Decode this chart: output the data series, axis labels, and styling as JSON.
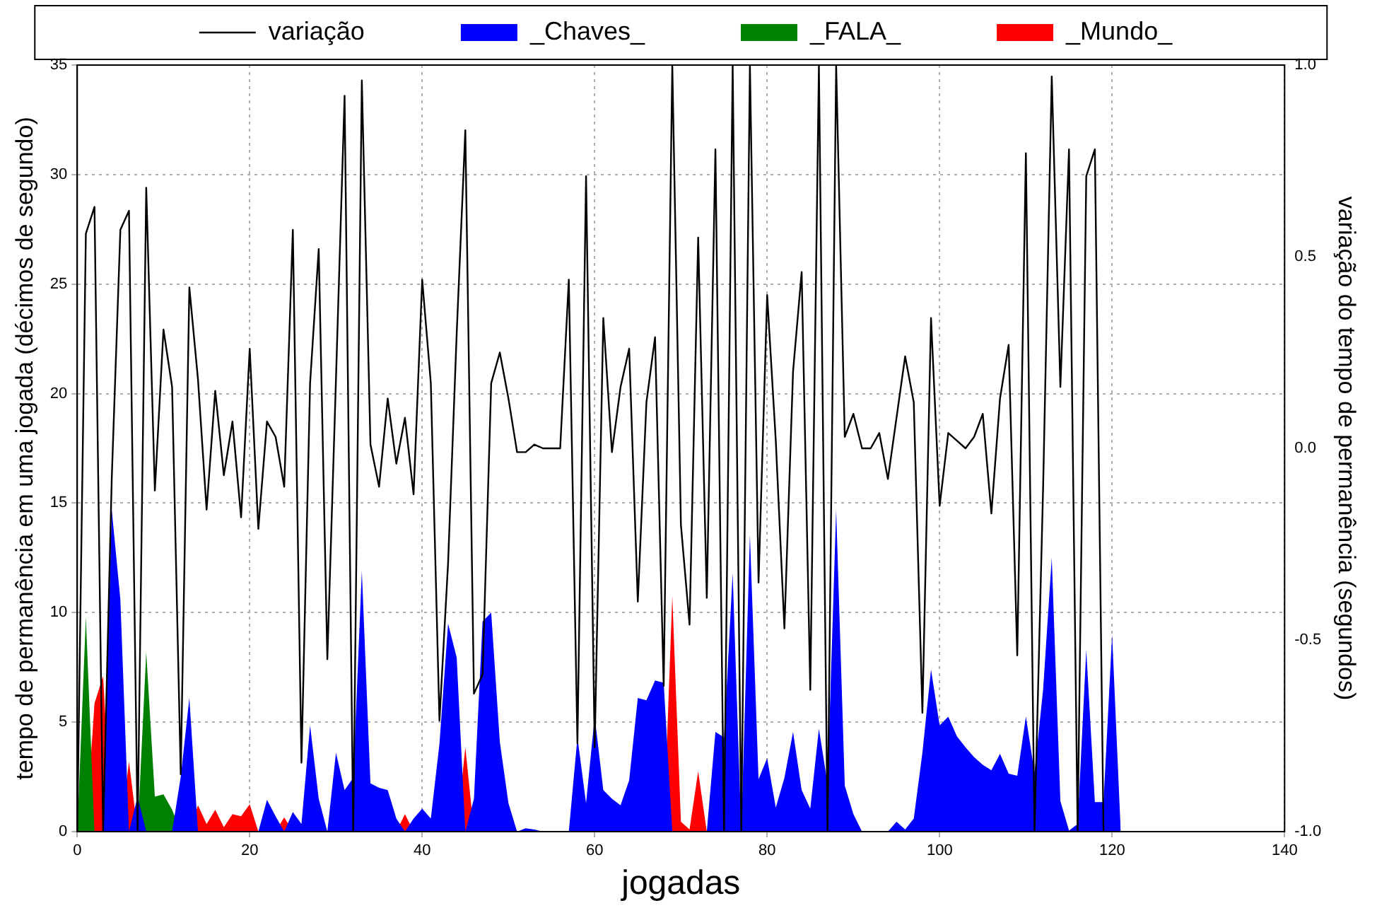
{
  "chart_data": {
    "type": "area",
    "xlabel": "jogadas",
    "ylabel": "tempo de permanência em uma jogada (décimos de segundo)",
    "y2label": "variação do tempo de permanência (segundos)",
    "x": [
      0,
      1,
      2,
      3,
      4,
      5,
      6,
      7,
      8,
      9,
      10,
      11,
      12,
      13,
      14,
      15,
      16,
      17,
      18,
      19,
      20,
      21,
      22,
      23,
      24,
      25,
      26,
      27,
      28,
      29,
      30,
      31,
      32,
      33,
      34,
      35,
      36,
      37,
      38,
      39,
      40,
      41,
      42,
      43,
      44,
      45,
      46,
      47,
      48,
      49,
      50,
      51,
      52,
      53,
      54,
      55,
      56,
      57,
      58,
      59,
      60,
      61,
      62,
      63,
      64,
      65,
      66,
      67,
      68,
      69,
      70,
      71,
      72,
      73,
      74,
      75,
      76,
      77,
      78,
      79,
      80,
      81,
      82,
      83,
      84,
      85,
      86,
      87,
      88,
      89,
      90,
      91,
      92,
      93,
      94,
      95,
      96,
      97,
      98,
      99,
      100,
      101,
      102,
      103,
      104,
      105,
      106,
      107,
      108,
      109,
      110,
      111,
      112,
      113,
      114,
      115,
      116,
      117,
      118,
      119,
      120,
      121
    ],
    "series": [
      {
        "name": "variação",
        "type": "line",
        "axis": "y2",
        "color": "#000000",
        "values": [
          -1,
          0.56,
          0.63,
          -1,
          -0.08,
          0.57,
          0.62,
          -1,
          0.68,
          -0.11,
          0.31,
          0.16,
          -0.85,
          0.42,
          0.18,
          -0.16,
          0.15,
          -0.07,
          0.07,
          -0.18,
          0.26,
          -0.21,
          0.07,
          0.03,
          -0.1,
          0.57,
          -0.82,
          0.17,
          0.52,
          -0.55,
          0.18,
          0.92,
          -1,
          0.96,
          0.01,
          -0.1,
          0.13,
          -0.04,
          0.08,
          -0.12,
          0.44,
          0.17,
          -0.71,
          -0.3,
          0.3,
          0.83,
          -0.64,
          -0.59,
          0.17,
          0.25,
          0.13,
          -0.01,
          -0.01,
          0.01,
          0,
          0,
          0,
          0.44,
          -0.77,
          0.71,
          -0.78,
          0.34,
          -0.01,
          0.16,
          0.26,
          -0.4,
          0.12,
          0.29,
          -0.62,
          1,
          -0.2,
          -0.46,
          0.55,
          -0.39,
          0.78,
          -1,
          1,
          -1,
          1,
          -0.35,
          0.4,
          0.02,
          -0.47,
          0.2,
          0.46,
          -0.63,
          1,
          -1,
          1,
          0.03,
          0.09,
          0,
          0,
          0.04,
          -0.08,
          0.08,
          0.24,
          0.12,
          -0.69,
          0.34,
          -0.15,
          0.04,
          0.02,
          0,
          0.03,
          0.09,
          -0.17,
          0.13,
          0.27,
          -0.54,
          0.77,
          -1,
          -0.1,
          0.97,
          0.16,
          0.78,
          -1,
          0.71,
          0.78,
          -1,
          null,
          null
        ]
      },
      {
        "name": "_Chaves_",
        "color": "#0000ff",
        "values": [
          0,
          0,
          0,
          0,
          14.7,
          10.6,
          0,
          1.6,
          0,
          0,
          0,
          0,
          2.5,
          6.1,
          0,
          0,
          0,
          0,
          0,
          0,
          0,
          0,
          1.45,
          0.7,
          0,
          0.9,
          0.35,
          4.85,
          1.5,
          0,
          3.6,
          1.9,
          2.45,
          11.9,
          2.2,
          2.0,
          1.9,
          0.6,
          0,
          0.6,
          1.05,
          0.6,
          4.0,
          9.5,
          7.95,
          0,
          1.5,
          9.6,
          10.0,
          4.1,
          1.3,
          0,
          0.15,
          0.1,
          0,
          0,
          0,
          0,
          4.3,
          1.3,
          5.25,
          1.9,
          1.5,
          1.2,
          2.35,
          6.1,
          6.0,
          6.9,
          6.8,
          0,
          0,
          0,
          0,
          0,
          4.55,
          4.3,
          11.8,
          0,
          13.55,
          2.4,
          3.35,
          1.1,
          2.45,
          4.55,
          1.9,
          1.05,
          4.7,
          2.2,
          14.7,
          2.1,
          0.8,
          0,
          0,
          0,
          0,
          0.45,
          0.1,
          0.6,
          3.6,
          7.4,
          4.85,
          5.25,
          4.35,
          3.85,
          3.4,
          3.05,
          2.8,
          3.55,
          2.65,
          2.55,
          5.25,
          2.7,
          6.5,
          12.5,
          1.4,
          0.05,
          0.35,
          8.3,
          1.35,
          1.35,
          9.0,
          0
        ]
      },
      {
        "name": "_FALA_",
        "color": "#008000",
        "values": [
          0,
          9.8,
          0,
          0,
          0,
          0,
          0,
          0,
          8.2,
          1.6,
          1.7,
          1.0,
          0,
          0,
          0,
          0,
          0,
          0,
          0,
          0,
          0,
          0,
          0,
          0,
          0,
          0,
          0,
          0,
          0,
          0,
          0,
          0,
          0,
          0,
          0,
          0,
          0,
          0,
          0,
          0,
          0,
          0,
          0,
          0,
          0,
          0,
          0,
          0,
          0,
          0,
          0,
          0,
          0,
          0,
          0,
          0,
          0,
          0,
          0,
          0,
          0,
          0,
          0,
          0,
          0,
          0,
          0,
          0,
          0,
          0,
          0,
          0,
          0,
          0,
          0,
          0,
          0,
          0,
          0,
          0,
          0,
          0,
          0,
          0,
          0,
          0,
          0,
          0,
          0,
          0,
          0,
          0,
          0,
          0,
          0,
          0,
          0,
          0,
          0,
          0,
          0,
          0,
          0,
          0,
          0,
          0,
          0,
          0,
          0,
          0,
          0,
          0,
          0,
          0,
          0,
          0,
          0,
          0,
          0,
          0,
          0,
          0
        ]
      },
      {
        "name": "_Mundo_",
        "color": "#ff0000",
        "values": [
          0,
          0,
          5.85,
          7.1,
          0,
          0,
          3.2,
          0,
          0,
          0,
          0,
          0,
          0,
          0,
          1.2,
          0.35,
          1.0,
          0.2,
          0.8,
          0.7,
          1.25,
          0,
          0,
          0,
          0.65,
          0,
          0,
          0,
          0,
          0,
          0,
          0,
          0,
          0,
          0,
          0,
          0,
          0,
          0.8,
          0,
          0,
          0,
          0,
          0,
          0,
          3.85,
          0,
          0,
          0,
          0,
          0,
          0,
          0,
          0,
          0,
          0,
          0,
          0,
          0,
          0,
          0,
          0,
          0,
          0,
          0,
          0,
          0,
          0,
          0,
          10.75,
          0.45,
          0.1,
          2.75,
          0,
          0,
          0,
          0,
          0,
          0,
          0,
          0,
          0,
          0,
          0,
          0,
          0,
          0,
          0,
          0,
          0,
          0,
          0,
          0,
          0,
          0,
          0,
          0,
          0,
          0,
          0,
          0,
          0,
          0,
          0,
          0,
          0,
          0,
          0,
          0,
          0,
          0,
          0,
          0,
          0,
          0,
          0,
          0,
          0,
          0,
          0,
          0,
          0
        ]
      }
    ],
    "xlim": [
      0,
      140
    ],
    "xticks": [
      0,
      20,
      40,
      60,
      80,
      100,
      120,
      140
    ],
    "ylim": [
      0,
      35
    ],
    "yticks": [
      0,
      5,
      10,
      15,
      20,
      25,
      30,
      35
    ],
    "y2lim": [
      -1,
      1
    ],
    "y2ticks": [
      {
        "value": -1,
        "label": "-1.0"
      },
      {
        "value": -0.5,
        "label": "-0.5"
      },
      {
        "value": 0,
        "label": "0.0"
      },
      {
        "value": 0.5,
        "label": "0.5"
      },
      {
        "value": 1,
        "label": "1.0"
      }
    ],
    "grid": true,
    "legend": "top"
  }
}
